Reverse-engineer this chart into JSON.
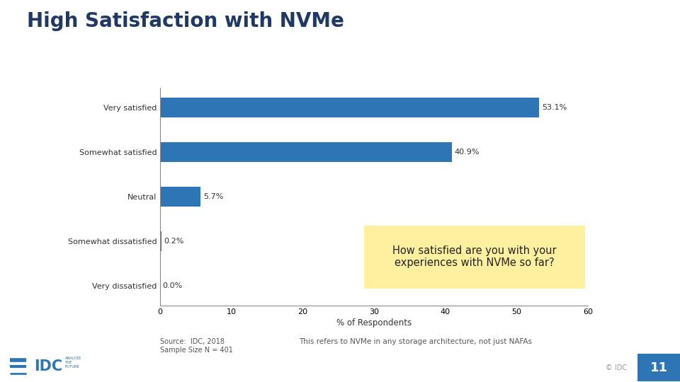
{
  "title": "High Satisfaction with NVMe",
  "title_fontsize": 20,
  "title_fontweight": "bold",
  "title_color": "#1F3864",
  "categories": [
    "Very dissatisfied",
    "Somewhat dissatisfied",
    "Neutral",
    "Somewhat satisfied",
    "Very satisfied"
  ],
  "values": [
    0.0,
    0.2,
    5.7,
    40.9,
    53.1
  ],
  "labels": [
    "0.0%",
    "0.2%",
    "5.7%",
    "40.9%",
    "53.1%"
  ],
  "bar_color": "#2E75B6",
  "xlim": [
    0,
    60
  ],
  "xticks": [
    0,
    10,
    20,
    30,
    40,
    50,
    60
  ],
  "xlabel": "% of Respondents",
  "xlabel_fontsize": 8.5,
  "bar_height": 0.45,
  "background_color": "#FFFFFF",
  "callout_text": "How satisfied are you with your\nexperiences with NVMe so far?",
  "callout_bg": "#FFF0A0",
  "source_text": "Source:  IDC, 2018\nSample Size N = 401",
  "note_text": "This refers to NVMe in any storage architecture, not just NAFAs",
  "footer_color": "#2E75B6",
  "page_number": "11",
  "label_fontsize": 8,
  "tick_fontsize": 8,
  "ytick_fontsize": 8
}
